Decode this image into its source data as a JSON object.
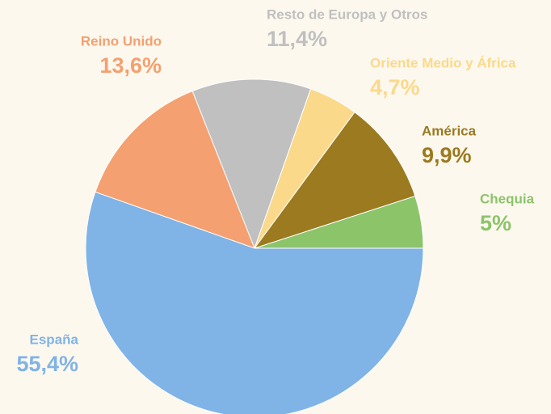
{
  "chart_data": {
    "type": "pie",
    "categories": [
      "Chequia",
      "América",
      "Oriente Medio y África",
      "Resto de Europa y Otros",
      "Reino Unido",
      "España"
    ],
    "values": [
      5,
      9.9,
      4.7,
      11.4,
      13.6,
      55.4
    ],
    "value_labels": [
      "5%",
      "9,9%",
      "4,7%",
      "11,4%",
      "13,6%",
      "55,4%"
    ],
    "colors": [
      "#8cc46a",
      "#9b7a20",
      "#fbd98b",
      "#c0c0c0",
      "#f4a070",
      "#80b3e6"
    ]
  }
}
